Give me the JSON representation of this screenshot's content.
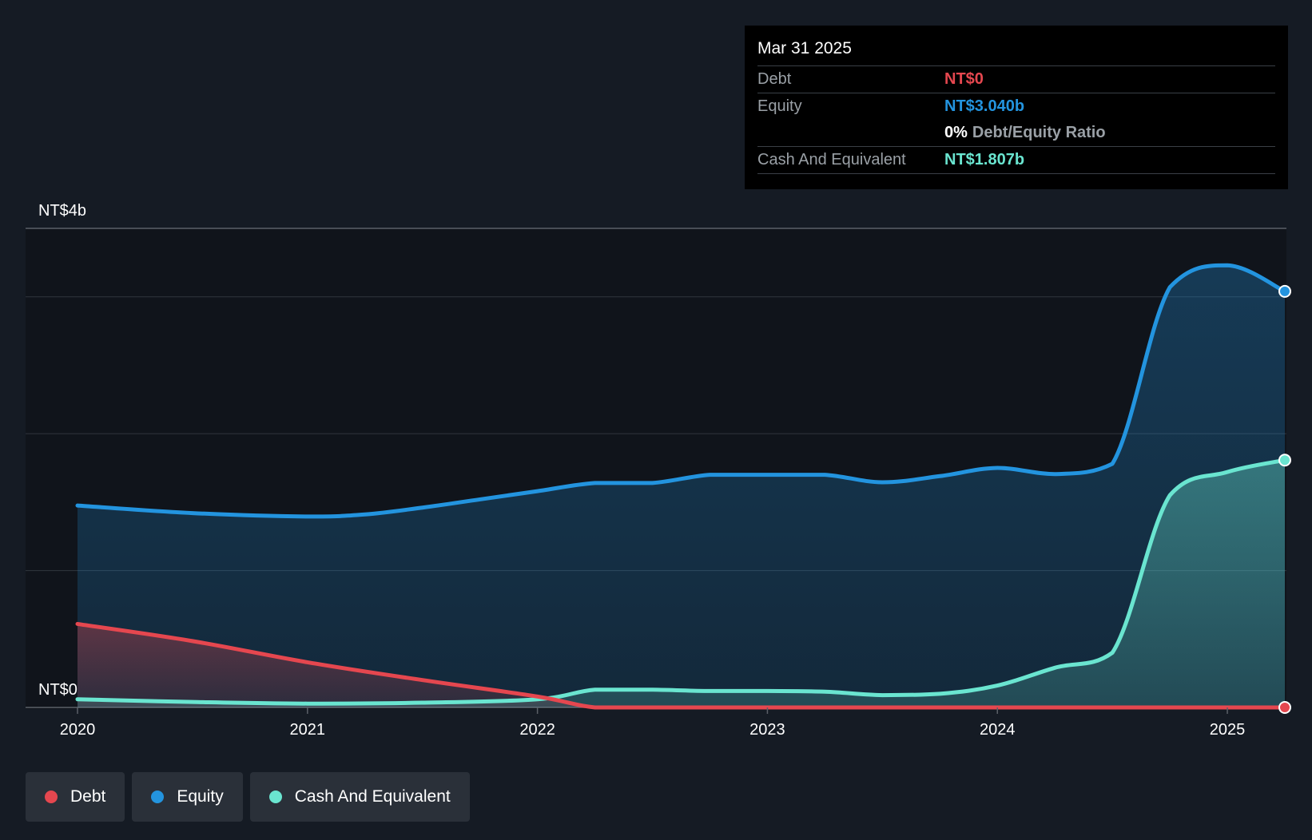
{
  "tooltip": {
    "date": "Mar 31 2025",
    "debt_label": "Debt",
    "debt_value": "NT$0",
    "equity_label": "Equity",
    "equity_value": "NT$3.040b",
    "ratio_value": "0%",
    "ratio_label": "Debt/Equity Ratio",
    "cash_label": "Cash And Equivalent",
    "cash_value": "NT$1.807b"
  },
  "legend": [
    {
      "label": "Debt",
      "color": "#e5474f"
    },
    {
      "label": "Equity",
      "color": "#2394df"
    },
    {
      "label": "Cash And Equivalent",
      "color": "#6ae5d0"
    }
  ],
  "chart_data": {
    "type": "area",
    "title": "",
    "xlabel": "",
    "ylabel": "",
    "y_unit": "NT$ billions",
    "ylim": [
      0,
      3.5
    ],
    "y_tick_labels": [
      {
        "value": 3.5,
        "label": "NT$4b"
      },
      {
        "value": 0,
        "label": "NT$0"
      }
    ],
    "gridlines": [
      3.5,
      3.0,
      2.0,
      1.0,
      0
    ],
    "xlim": [
      2020.0,
      2025.25
    ],
    "x_ticks": [
      {
        "value": 2020,
        "label": "2020"
      },
      {
        "value": 2021,
        "label": "2021"
      },
      {
        "value": 2022,
        "label": "2022"
      },
      {
        "value": 2023,
        "label": "2023"
      },
      {
        "value": 2024,
        "label": "2024"
      },
      {
        "value": 2025,
        "label": "2025"
      }
    ],
    "series": [
      {
        "name": "Equity",
        "color": "#2394df",
        "points": [
          [
            2020.0,
            1.475
          ],
          [
            2020.5,
            1.42
          ],
          [
            2021.0,
            1.395
          ],
          [
            2021.25,
            1.41
          ],
          [
            2021.5,
            1.46
          ],
          [
            2021.75,
            1.52
          ],
          [
            2022.0,
            1.58
          ],
          [
            2022.25,
            1.64
          ],
          [
            2022.5,
            1.64
          ],
          [
            2022.75,
            1.7
          ],
          [
            2023.0,
            1.7
          ],
          [
            2023.25,
            1.7
          ],
          [
            2023.5,
            1.645
          ],
          [
            2023.75,
            1.69
          ],
          [
            2024.0,
            1.75
          ],
          [
            2024.25,
            1.705
          ],
          [
            2024.5,
            1.78
          ],
          [
            2024.75,
            3.07
          ],
          [
            2025.0,
            3.23
          ],
          [
            2025.25,
            3.04
          ]
        ]
      },
      {
        "name": "Cash And Equivalent",
        "color": "#6ae5d0",
        "points": [
          [
            2020.0,
            0.06
          ],
          [
            2020.5,
            0.04
          ],
          [
            2021.0,
            0.028
          ],
          [
            2021.5,
            0.035
          ],
          [
            2022.0,
            0.06
          ],
          [
            2022.25,
            0.13
          ],
          [
            2022.5,
            0.13
          ],
          [
            2022.75,
            0.12
          ],
          [
            2023.0,
            0.12
          ],
          [
            2023.25,
            0.115
          ],
          [
            2023.5,
            0.09
          ],
          [
            2023.75,
            0.1
          ],
          [
            2024.0,
            0.16
          ],
          [
            2024.25,
            0.29
          ],
          [
            2024.5,
            0.4
          ],
          [
            2024.75,
            1.55
          ],
          [
            2025.0,
            1.72
          ],
          [
            2025.25,
            1.807
          ]
        ]
      },
      {
        "name": "Debt",
        "color": "#e5474f",
        "points": [
          [
            2020.0,
            0.61
          ],
          [
            2020.5,
            0.485
          ],
          [
            2021.0,
            0.33
          ],
          [
            2021.5,
            0.2
          ],
          [
            2022.0,
            0.08
          ],
          [
            2022.25,
            0.0
          ],
          [
            2022.5,
            0.0
          ],
          [
            2023.0,
            0.0
          ],
          [
            2023.5,
            0.0
          ],
          [
            2024.0,
            0.0
          ],
          [
            2024.5,
            0.0
          ],
          [
            2025.0,
            0.0
          ],
          [
            2025.25,
            0.0
          ]
        ]
      }
    ]
  }
}
